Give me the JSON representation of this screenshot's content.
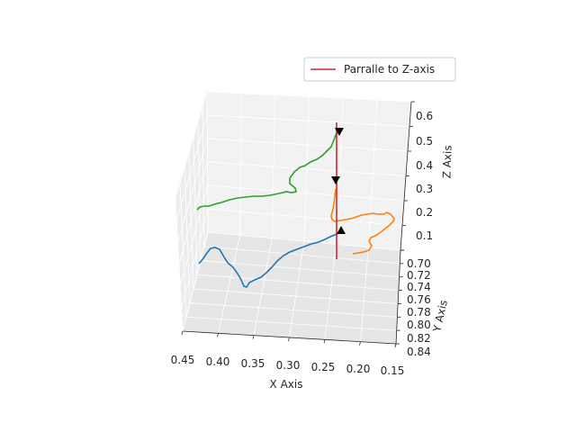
{
  "chart_data": {
    "type": "line",
    "projection": "3d",
    "xlabel": "X Axis",
    "ylabel": "Y Axis",
    "zlabel": "Z Axis",
    "x_ticks": [
      "0.45",
      "0.40",
      "0.35",
      "0.30",
      "0.25",
      "0.20",
      "0.15"
    ],
    "y_ticks": [
      "0.70",
      "0.72",
      "0.74",
      "0.76",
      "0.78",
      "0.80",
      "0.82",
      "0.84"
    ],
    "z_ticks": [
      "0.1",
      "0.2",
      "0.3",
      "0.4",
      "0.5",
      "0.6"
    ],
    "legend": {
      "placement": "top-right",
      "entries": [
        {
          "label": "Parralle to Z-axis",
          "color": "#d62728"
        }
      ]
    },
    "series": [
      {
        "color": "#1f77b4"
      },
      {
        "color": "#ff7f0e"
      },
      {
        "color": "#2ca02c"
      },
      {
        "name": "Parralle to Z-axis",
        "color": "#d62728"
      }
    ],
    "grid": true,
    "markers": {
      "shape": "triangle-down",
      "color": "#000000",
      "count": 3
    }
  }
}
